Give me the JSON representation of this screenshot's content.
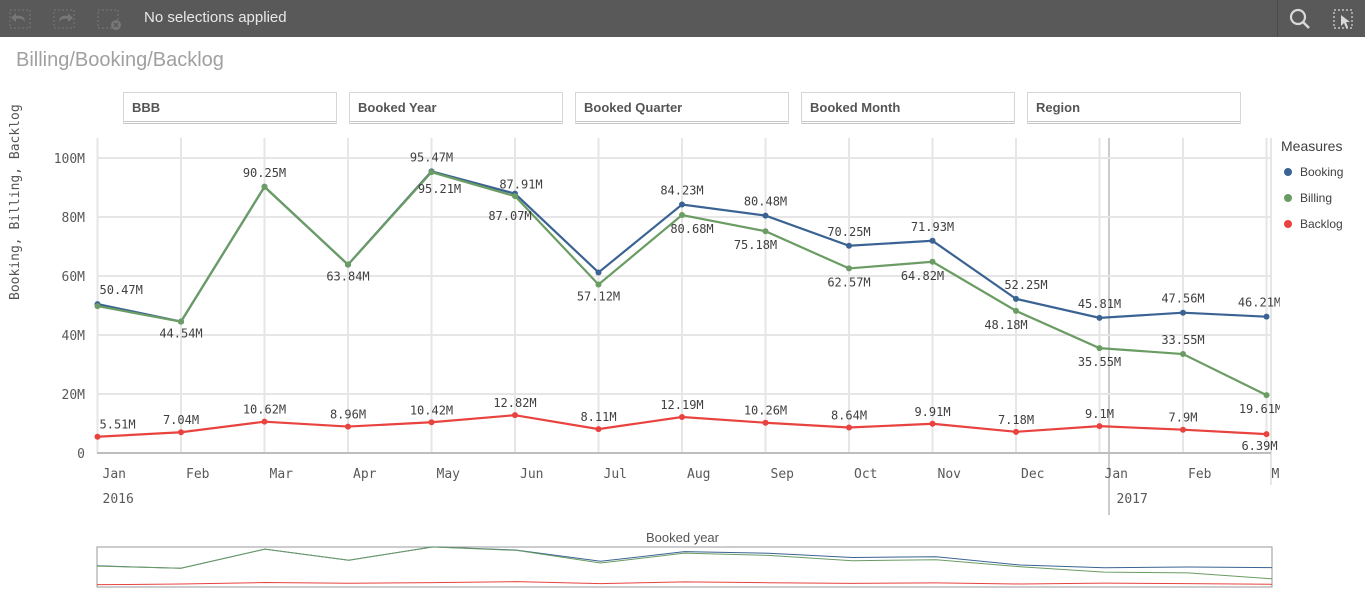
{
  "toolbar": {
    "status": "No selections applied",
    "icons": [
      "undo-icon",
      "redo-icon",
      "clear-selections-icon",
      "search-icon",
      "selections-tool-icon"
    ]
  },
  "sheet": {
    "title": "Billing/Booking/Backlog"
  },
  "filters": [
    {
      "label": "BBB"
    },
    {
      "label": "Booked Year"
    },
    {
      "label": "Booked Quarter"
    },
    {
      "label": "Booked Month"
    },
    {
      "label": "Region"
    }
  ],
  "navigator": {
    "title": "Booked year"
  },
  "chart_data": {
    "type": "line",
    "ylabel": "Booking, Billing, Backlog",
    "ylim": [
      0,
      100
    ],
    "yticks": [
      "0",
      "20M",
      "40M",
      "60M",
      "80M",
      "100M"
    ],
    "categories": [
      "Jan",
      "Feb",
      "Mar",
      "Apr",
      "May",
      "Jun",
      "Jul",
      "Aug",
      "Sep",
      "Oct",
      "Nov",
      "Dec",
      "Jan",
      "Feb",
      "Mar"
    ],
    "year_labels": [
      {
        "index": 0,
        "label": "2016"
      },
      {
        "index": 12,
        "label": "2017"
      }
    ],
    "legend_title": "Measures",
    "legend_position": "right",
    "series": [
      {
        "name": "Booking",
        "color": "#3a6393",
        "values": [
          50.47,
          44.54,
          90.25,
          63.84,
          95.47,
          87.91,
          61.2,
          84.23,
          80.48,
          70.25,
          71.93,
          52.25,
          45.81,
          47.56,
          46.21
        ],
        "labels": [
          "50.47M",
          "",
          "90.25M",
          "",
          "95.47M",
          "87.91M",
          "",
          "84.23M",
          "80.48M",
          "70.25M",
          "71.93M",
          "52.25M",
          "45.81M",
          "47.56M",
          "46.21M"
        ]
      },
      {
        "name": "Billing",
        "color": "#6a9c63",
        "values": [
          49.8,
          44.54,
          90.25,
          63.84,
          95.21,
          87.07,
          57.12,
          80.68,
          75.18,
          62.57,
          64.82,
          48.18,
          35.55,
          33.55,
          19.61
        ],
        "labels": [
          "",
          "44.54M",
          "",
          "63.84M",
          "95.21M",
          "87.07M",
          "57.12M",
          "80.68M",
          "75.18M",
          "62.57M",
          "64.82M",
          "48.18M",
          "35.55M",
          "33.55M",
          "19.61M"
        ]
      },
      {
        "name": "Backlog",
        "color": "#e8433f",
        "values": [
          5.51,
          7.04,
          10.62,
          8.96,
          10.42,
          12.82,
          8.11,
          12.19,
          10.26,
          8.64,
          9.91,
          7.18,
          9.1,
          7.9,
          6.39
        ],
        "labels": [
          "5.51M",
          "7.04M",
          "10.62M",
          "8.96M",
          "10.42M",
          "12.82M",
          "8.11M",
          "12.19M",
          "10.26M",
          "8.64M",
          "9.91M",
          "7.18M",
          "9.1M",
          "7.9M",
          "6.39M"
        ]
      }
    ]
  }
}
